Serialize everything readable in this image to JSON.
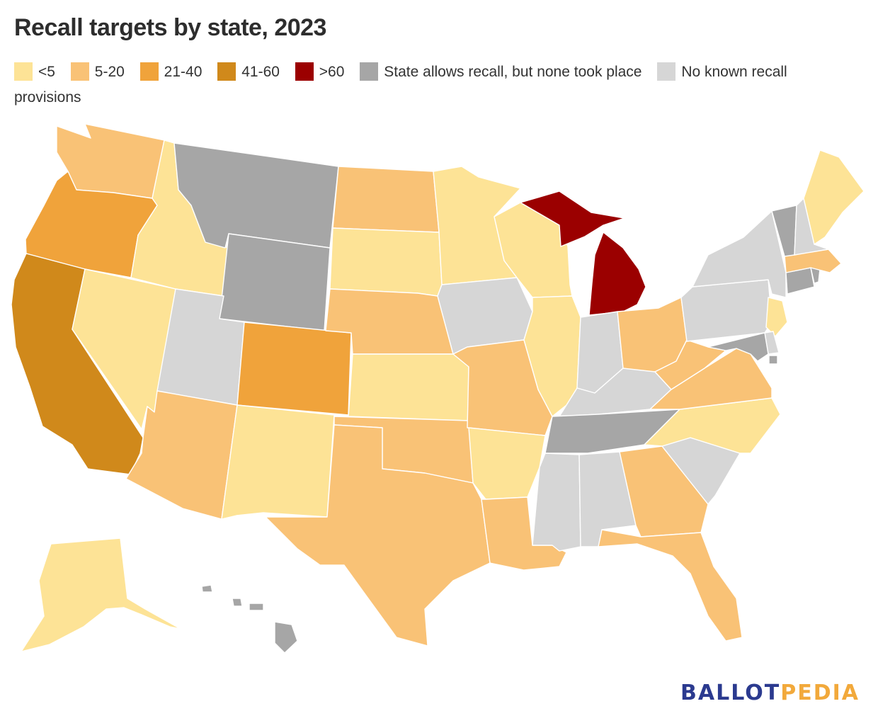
{
  "title": "Recall targets by state, 2023",
  "legend": [
    {
      "key": "lt5",
      "label": "<5",
      "color": "#fde396"
    },
    {
      "key": "b5_20",
      "label": "5-20",
      "color": "#f9c276"
    },
    {
      "key": "b21_40",
      "label": "21-40",
      "color": "#f0a33b"
    },
    {
      "key": "b41_60",
      "label": "41-60",
      "color": "#d0891b"
    },
    {
      "key": "gt60",
      "label": ">60",
      "color": "#9b0000"
    },
    {
      "key": "allowed_none",
      "label": "State allows recall, but none took place",
      "color": "#a6a6a6"
    },
    {
      "key": "no_provisions",
      "label": "No known recall provisions",
      "color": "#d6d6d6"
    }
  ],
  "states": {
    "WA": "b5_20",
    "OR": "b21_40",
    "CA": "b41_60",
    "NV": "lt5",
    "ID": "lt5",
    "MT": "allowed_none",
    "WY": "allowed_none",
    "UT": "no_provisions",
    "AZ": "b5_20",
    "CO": "b21_40",
    "NM": "lt5",
    "ND": "b5_20",
    "SD": "lt5",
    "NE": "b5_20",
    "KS": "lt5",
    "OK": "b5_20",
    "TX": "b5_20",
    "MN": "lt5",
    "IA": "no_provisions",
    "MO": "b5_20",
    "AR": "lt5",
    "LA": "b5_20",
    "WI": "lt5",
    "IL": "lt5",
    "MI": "gt60",
    "IN": "no_provisions",
    "OH": "b5_20",
    "KY": "no_provisions",
    "TN": "allowed_none",
    "MS": "no_provisions",
    "AL": "no_provisions",
    "GA": "b5_20",
    "FL": "b5_20",
    "SC": "no_provisions",
    "NC": "lt5",
    "VA": "b5_20",
    "WV": "b5_20",
    "PA": "no_provisions",
    "NY": "no_provisions",
    "NJ": "lt5",
    "DE": "no_provisions",
    "MD": "allowed_none",
    "DC": "allowed_none",
    "CT": "allowed_none",
    "RI": "allowed_none",
    "MA": "b5_20",
    "VT": "allowed_none",
    "NH": "no_provisions",
    "ME": "lt5",
    "AK": "lt5",
    "HI": "allowed_none"
  },
  "logo": {
    "part1": "BALLOT",
    "part2": "PEDIA"
  }
}
